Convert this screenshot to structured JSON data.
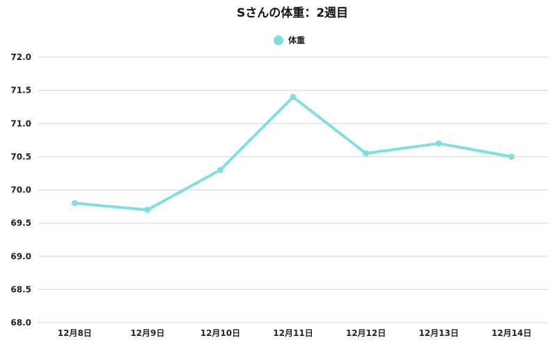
{
  "chart_data": {
    "type": "line",
    "title": "Sさんの体重：2週目",
    "xlabel": "",
    "ylabel": "",
    "categories": [
      "12月8日",
      "12月9日",
      "12月10日",
      "12月11日",
      "12月12日",
      "12月13日",
      "12月14日"
    ],
    "series": [
      {
        "name": "体重",
        "values": [
          69.8,
          69.7,
          70.3,
          71.4,
          70.55,
          70.7,
          70.5
        ],
        "color": "#7ddfe3"
      }
    ],
    "ylim": [
      68.0,
      72.0
    ],
    "yticks": [
      "68.0",
      "68.5",
      "69.0",
      "69.5",
      "70.0",
      "70.5",
      "71.0",
      "71.5",
      "72.0"
    ],
    "grid": true,
    "legend_position": "top-center"
  }
}
